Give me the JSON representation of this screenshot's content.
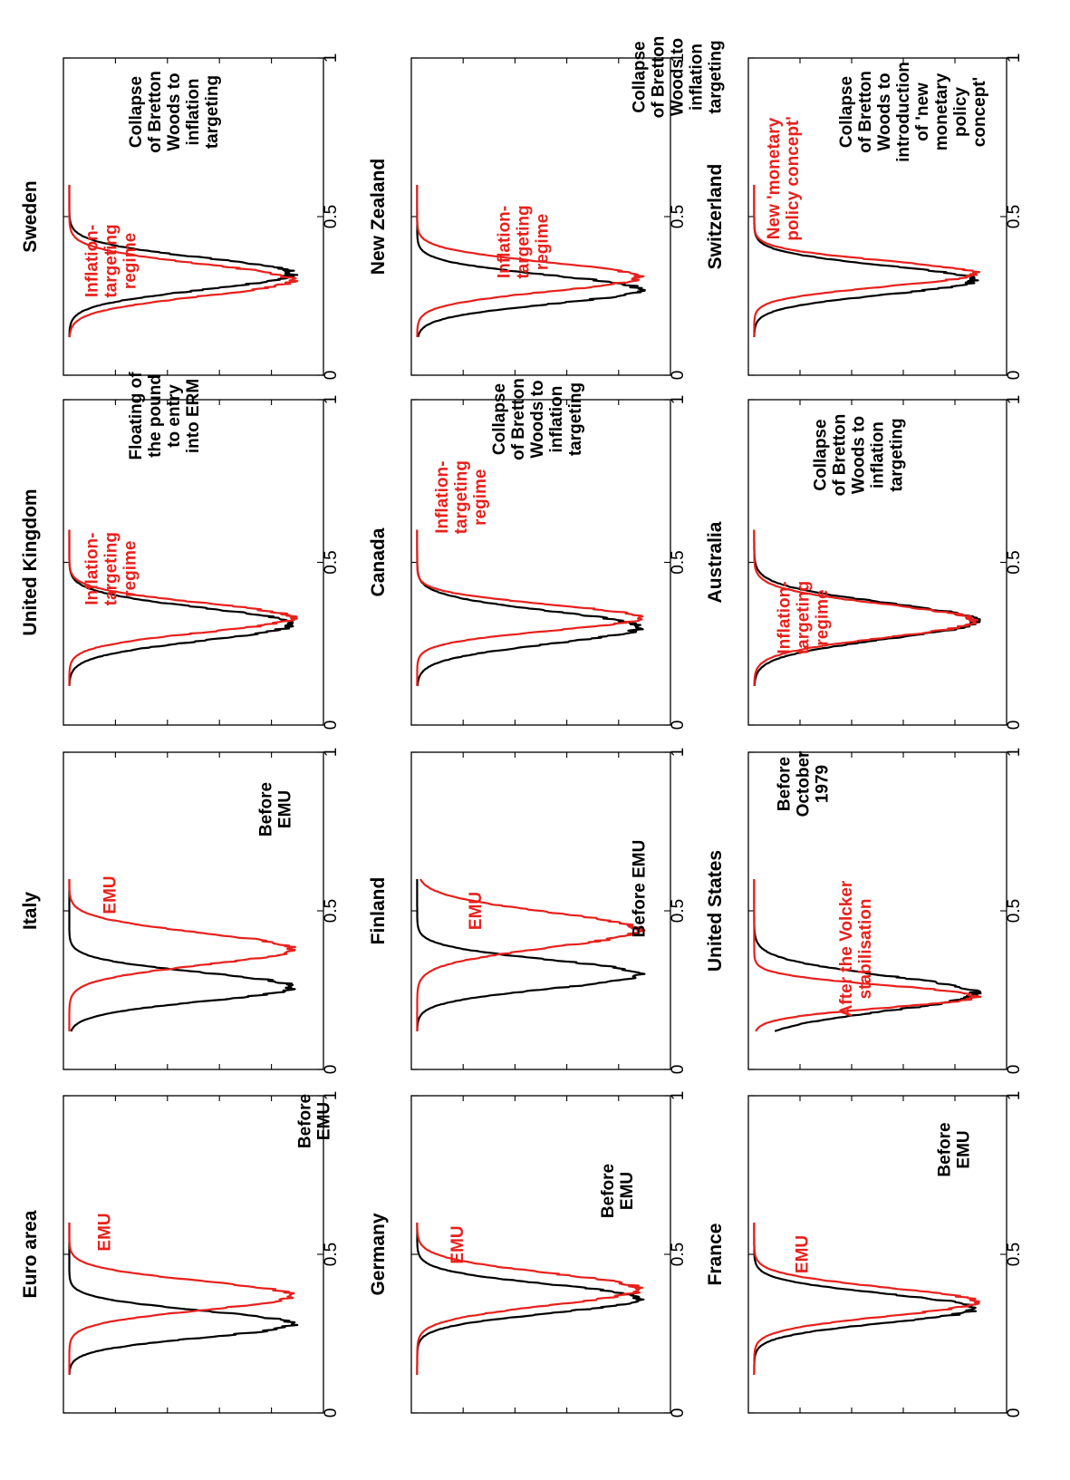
{
  "chart_data": [
    {
      "type": "line",
      "title": "Euro area",
      "xlim": [
        0,
        1
      ],
      "x_ticks": [
        "0",
        "0.5",
        "1"
      ],
      "series": [
        {
          "name": "Before EMU",
          "color": "#000000",
          "peak": 0.28,
          "sigma": 0.042
        },
        {
          "name": "EMU",
          "color": "#e8201c",
          "peak": 0.37,
          "sigma": 0.045
        }
      ],
      "annotations": [
        {
          "lines": [
            "Before",
            "EMU"
          ],
          "color": "#000000"
        },
        {
          "lines": [
            "EMU"
          ],
          "color": "#e8201c"
        }
      ]
    },
    {
      "type": "line",
      "title": "Germany",
      "xlim": [
        0,
        1
      ],
      "x_ticks": [
        "0",
        "0.5",
        "1"
      ],
      "series": [
        {
          "name": "Before EMU",
          "color": "#000000",
          "peak": 0.36,
          "sigma": 0.045
        },
        {
          "name": "EMU",
          "color": "#e8201c",
          "peak": 0.39,
          "sigma": 0.05
        }
      ],
      "annotations": [
        {
          "lines": [
            "Before",
            "EMU"
          ],
          "color": "#000000"
        },
        {
          "lines": [
            "EMU"
          ],
          "color": "#e8201c"
        }
      ]
    },
    {
      "type": "line",
      "title": "France",
      "xlim": [
        0,
        1
      ],
      "x_ticks": [
        "0",
        "0.5",
        "1"
      ],
      "series": [
        {
          "name": "Before EMU",
          "color": "#000000",
          "peak": 0.33,
          "sigma": 0.045
        },
        {
          "name": "EMU",
          "color": "#e8201c",
          "peak": 0.35,
          "sigma": 0.045
        }
      ],
      "annotations": [
        {
          "lines": [
            "Before",
            "EMU"
          ],
          "color": "#000000"
        },
        {
          "lines": [
            "EMU"
          ],
          "color": "#e8201c"
        }
      ]
    },
    {
      "type": "line",
      "title": "Italy",
      "xlim": [
        0,
        1
      ],
      "x_ticks": [
        "0",
        "0.5",
        "1"
      ],
      "series": [
        {
          "name": "Before EMU",
          "color": "#000000",
          "peak": 0.26,
          "sigma": 0.045
        },
        {
          "name": "EMU",
          "color": "#e8201c",
          "peak": 0.38,
          "sigma": 0.05
        }
      ],
      "annotations": [
        {
          "lines": [
            "Before",
            "EMU"
          ],
          "color": "#000000"
        },
        {
          "lines": [
            "EMU"
          ],
          "color": "#e8201c"
        }
      ]
    },
    {
      "type": "line",
      "title": "Finland",
      "xlim": [
        0,
        1
      ],
      "x_ticks": [
        "0",
        "0.5",
        "1"
      ],
      "series": [
        {
          "name": "Before EMU",
          "color": "#000000",
          "peak": 0.3,
          "sigma": 0.045
        },
        {
          "name": "EMU",
          "color": "#e8201c",
          "peak": 0.44,
          "sigma": 0.055
        }
      ],
      "annotations": [
        {
          "lines": [
            "Before EMU"
          ],
          "color": "#000000"
        },
        {
          "lines": [
            "EMU"
          ],
          "color": "#e8201c"
        }
      ]
    },
    {
      "type": "line",
      "title": "United States",
      "xlim": [
        0,
        1
      ],
      "x_ticks": [
        "0",
        "0.5",
        "1"
      ],
      "series": [
        {
          "name": "Before October 1979",
          "color": "#000000",
          "peak": 0.24,
          "sigma": 0.055
        },
        {
          "name": "After the Volcker stabilisation",
          "color": "#e8201c",
          "peak": 0.23,
          "sigma": 0.035
        }
      ],
      "annotations": [
        {
          "lines": [
            "Before",
            "October",
            "1979"
          ],
          "color": "#000000"
        },
        {
          "lines": [
            "After the Volcker",
            "stabilisation"
          ],
          "color": "#e8201c"
        }
      ]
    },
    {
      "type": "line",
      "title": "United Kingdom",
      "xlim": [
        0,
        1
      ],
      "x_ticks": [
        "0",
        "0.5",
        "1"
      ],
      "series": [
        {
          "name": "Floating of the pound to entry into ERM",
          "color": "#000000",
          "peak": 0.31,
          "sigma": 0.05
        },
        {
          "name": "Inflation-targeting regime",
          "color": "#e8201c",
          "peak": 0.33,
          "sigma": 0.045
        }
      ],
      "annotations": [
        {
          "lines": [
            "Floating of",
            "the pound",
            "to entry",
            "into ERM"
          ],
          "color": "#000000"
        },
        {
          "lines": [
            "Inflation-",
            "targeting",
            "regime"
          ],
          "color": "#e8201c"
        }
      ]
    },
    {
      "type": "line",
      "title": "Canada",
      "xlim": [
        0,
        1
      ],
      "x_ticks": [
        "0",
        "0.5",
        "1"
      ],
      "series": [
        {
          "name": "Collapse of Bretton Woods to inflation targeting",
          "color": "#000000",
          "peak": 0.3,
          "sigma": 0.05
        },
        {
          "name": "Inflation-targeting regime",
          "color": "#e8201c",
          "peak": 0.33,
          "sigma": 0.04
        }
      ],
      "annotations": [
        {
          "lines": [
            "Collapse",
            "of Bretton",
            "Woods to",
            "inflation",
            "targeting"
          ],
          "color": "#000000"
        },
        {
          "lines": [
            "Inflation-",
            "targeting",
            "regime"
          ],
          "color": "#e8201c"
        }
      ]
    },
    {
      "type": "line",
      "title": "Australia",
      "xlim": [
        0,
        1
      ],
      "x_ticks": [
        "0",
        "0.5",
        "1"
      ],
      "series": [
        {
          "name": "Collapse of Bretton Woods to inflation targeting",
          "color": "#000000",
          "peak": 0.32,
          "sigma": 0.055
        },
        {
          "name": "Inflation-targeting regime",
          "color": "#e8201c",
          "peak": 0.32,
          "sigma": 0.05
        }
      ],
      "annotations": [
        {
          "lines": [
            "Collapse",
            "of Bretton",
            "Woods to",
            "inflation",
            "targeting"
          ],
          "color": "#000000"
        },
        {
          "lines": [
            "Inflation-",
            "targeting",
            "regime"
          ],
          "color": "#e8201c"
        }
      ]
    },
    {
      "type": "line",
      "title": "Sweden",
      "xlim": [
        0,
        1
      ],
      "x_ticks": [
        "0",
        "0.5",
        "1"
      ],
      "series": [
        {
          "name": "Collapse of Bretton Woods to inflation targeting",
          "color": "#000000",
          "peak": 0.32,
          "sigma": 0.05
        },
        {
          "name": "Inflation-targeting regime",
          "color": "#e8201c",
          "peak": 0.3,
          "sigma": 0.05
        }
      ],
      "annotations": [
        {
          "lines": [
            "Collapse",
            "of Bretton",
            "Woods to",
            "inflation",
            "targeting"
          ],
          "color": "#000000"
        },
        {
          "lines": [
            "Inflation-",
            "targeting",
            "regime"
          ],
          "color": "#e8201c"
        }
      ]
    },
    {
      "type": "line",
      "title": "New Zealand",
      "xlim": [
        0,
        1
      ],
      "x_ticks": [
        "0",
        "0.5",
        "1"
      ],
      "series": [
        {
          "name": "Collapse of Bretton Woods to inflation targeting",
          "color": "#000000",
          "peak": 0.27,
          "sigma": 0.045
        },
        {
          "name": "Inflation-targeting regime",
          "color": "#e8201c",
          "peak": 0.31,
          "sigma": 0.045
        }
      ],
      "annotations": [
        {
          "lines": [
            "Collapse",
            "of Bretton",
            "Woods to",
            "inflation",
            "targeting"
          ],
          "color": "#000000"
        },
        {
          "lines": [
            "Inflation-",
            "targeting",
            "regime"
          ],
          "color": "#e8201c"
        }
      ]
    },
    {
      "type": "line",
      "title": "Switzerland",
      "xlim": [
        0,
        1
      ],
      "x_ticks": [
        "0",
        "0.5",
        "1"
      ],
      "series": [
        {
          "name": "Collapse of Bretton Woods to introduction of 'new monetary policy concept'",
          "color": "#000000",
          "peak": 0.3,
          "sigma": 0.045
        },
        {
          "name": "New 'monetary policy concept'",
          "color": "#e8201c",
          "peak": 0.32,
          "sigma": 0.04
        }
      ],
      "annotations": [
        {
          "lines": [
            "Collapse",
            "of Bretton",
            "Woods to",
            "introduction",
            "of 'new",
            "monetary",
            "policy",
            "concept'"
          ],
          "color": "#000000"
        },
        {
          "lines": [
            "New 'monetary",
            "policy concept'"
          ],
          "color": "#e8201c"
        }
      ]
    }
  ]
}
